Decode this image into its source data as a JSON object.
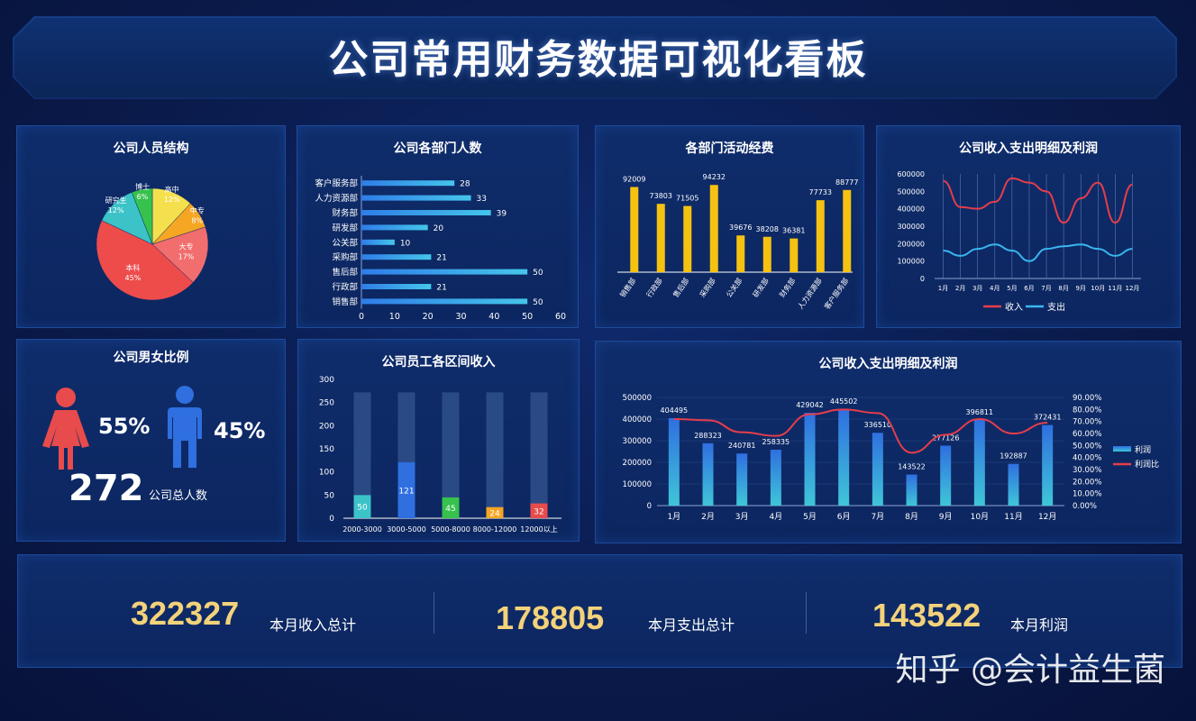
{
  "header": {
    "title": "公司常用财务数据可视化看板"
  },
  "panels": {
    "structure": "公司人员结构",
    "dept_count": "公司各部门人数",
    "dept_spend": "各部门活动经费",
    "line_top": "公司收入支出明细及利润",
    "gender": "公司男女比例",
    "income_range": "公司员工各区间收入",
    "profit": "公司收入支出明细及利润"
  },
  "gender": {
    "female_pct": "55%",
    "male_pct": "45%",
    "total": "272",
    "total_label": "公司总人数",
    "female_color": "#e84b4b",
    "male_color": "#2f6fe0"
  },
  "kpis": [
    {
      "value": "322327",
      "label": "本月收入总计"
    },
    {
      "value": "178805",
      "label": "本月支出总计"
    },
    {
      "value": "143522",
      "label": "本月利润"
    }
  ],
  "watermark": "知乎 @会计益生菌",
  "chart_data": [
    {
      "type": "pie",
      "title": "公司人员结构",
      "slices": [
        {
          "label": "高中",
          "pct": "12%",
          "value": 12,
          "color": "#f4e04d"
        },
        {
          "label": "中专",
          "pct": "8%",
          "value": 8,
          "color": "#f5a623"
        },
        {
          "label": "大专",
          "pct": "17%",
          "value": 17,
          "color": "#f26d6d"
        },
        {
          "label": "本科",
          "pct": "45%",
          "value": 45,
          "color": "#ee4b4b"
        },
        {
          "label": "研究生",
          "pct": "12%",
          "value": 12,
          "color": "#3cc3c8"
        },
        {
          "label": "博士",
          "pct": "6%",
          "value": 6,
          "color": "#36c24d"
        }
      ]
    },
    {
      "type": "bar",
      "orientation": "horizontal",
      "title": "公司各部门人数",
      "categories": [
        "客户服务部",
        "人力资源部",
        "财务部",
        "研发部",
        "公关部",
        "采购部",
        "售后部",
        "行政部",
        "销售部"
      ],
      "values": [
        28,
        33,
        39,
        20,
        10,
        21,
        50,
        21,
        50
      ],
      "xlim": [
        0,
        60
      ],
      "xticks": [
        "0",
        "10",
        "20",
        "30",
        "40",
        "50",
        "60"
      ]
    },
    {
      "type": "bar",
      "title": "各部门活动经费",
      "categories": [
        "销售部",
        "行政部",
        "售后部",
        "采购部",
        "公关部",
        "研发部",
        "财务部",
        "人力资源部",
        "客户服务部"
      ],
      "values": [
        92009,
        73803,
        71505,
        94232,
        39676,
        38208,
        36381,
        77733,
        88777
      ],
      "color": "#f5c211"
    },
    {
      "type": "line",
      "title": "公司收入支出明细及利润",
      "categories": [
        "1月",
        "2月",
        "3月",
        "4月",
        "5月",
        "6月",
        "7月",
        "8月",
        "9月",
        "10月",
        "11月",
        "12月"
      ],
      "series": [
        {
          "name": "收入",
          "values": [
            560000,
            410000,
            400000,
            440000,
            575000,
            550000,
            500000,
            320000,
            460000,
            550000,
            320000,
            540000
          ],
          "color": "#e63d4b"
        },
        {
          "name": "支出",
          "values": [
            160000,
            130000,
            170000,
            195000,
            160000,
            100000,
            170000,
            185000,
            195000,
            170000,
            130000,
            170000
          ],
          "color": "#3ab6f0"
        }
      ],
      "yticks": [
        "0",
        "100000",
        "200000",
        "300000",
        "400000",
        "500000",
        "600000"
      ],
      "ylim": [
        0,
        600000
      ],
      "legend": "bottom"
    },
    {
      "type": "bar",
      "subtype": "stacked-background",
      "title": "公司员工各区间收入",
      "categories": [
        "2000-3000",
        "3000-5000",
        "5000-8000",
        "8000-12000",
        "12000以上"
      ],
      "values": [
        50,
        121,
        45,
        24,
        32
      ],
      "background_value": 272,
      "colors": [
        "#3cc3c8",
        "#2f6fe0",
        "#36c24d",
        "#f5a623",
        "#e84b4b"
      ],
      "ylim": [
        0,
        300
      ],
      "yticks": [
        "0",
        "50",
        "100",
        "150",
        "200",
        "250",
        "300"
      ]
    },
    {
      "type": "bar",
      "subtype": "combo-bar-line",
      "title": "公司收入支出明细及利润",
      "categories": [
        "1月",
        "2月",
        "3月",
        "4月",
        "5月",
        "6月",
        "7月",
        "8月",
        "9月",
        "10月",
        "11月",
        "12月"
      ],
      "series": [
        {
          "name": "利润",
          "values": [
            404495,
            288323,
            240781,
            258335,
            429042,
            445502,
            336510,
            143522,
            277126,
            396811,
            192887,
            372431
          ],
          "axis": "left"
        },
        {
          "name": "利润比",
          "values": [
            0.72,
            0.71,
            0.61,
            0.58,
            0.76,
            0.8,
            0.77,
            0.44,
            0.59,
            0.72,
            0.6,
            0.69
          ],
          "axis": "right",
          "color": "#e63d4b"
        }
      ],
      "ylim": [
        0,
        500000
      ],
      "yticks": [
        "0",
        "100000",
        "200000",
        "300000",
        "400000",
        "500000"
      ],
      "y2ticks": [
        "0.00%",
        "10.00%",
        "20.00%",
        "30.00%",
        "40.00%",
        "50.00%",
        "60.00%",
        "70.00%",
        "80.00%",
        "90.00%"
      ],
      "y2lim": [
        0,
        0.9
      ],
      "legend": "right"
    }
  ]
}
